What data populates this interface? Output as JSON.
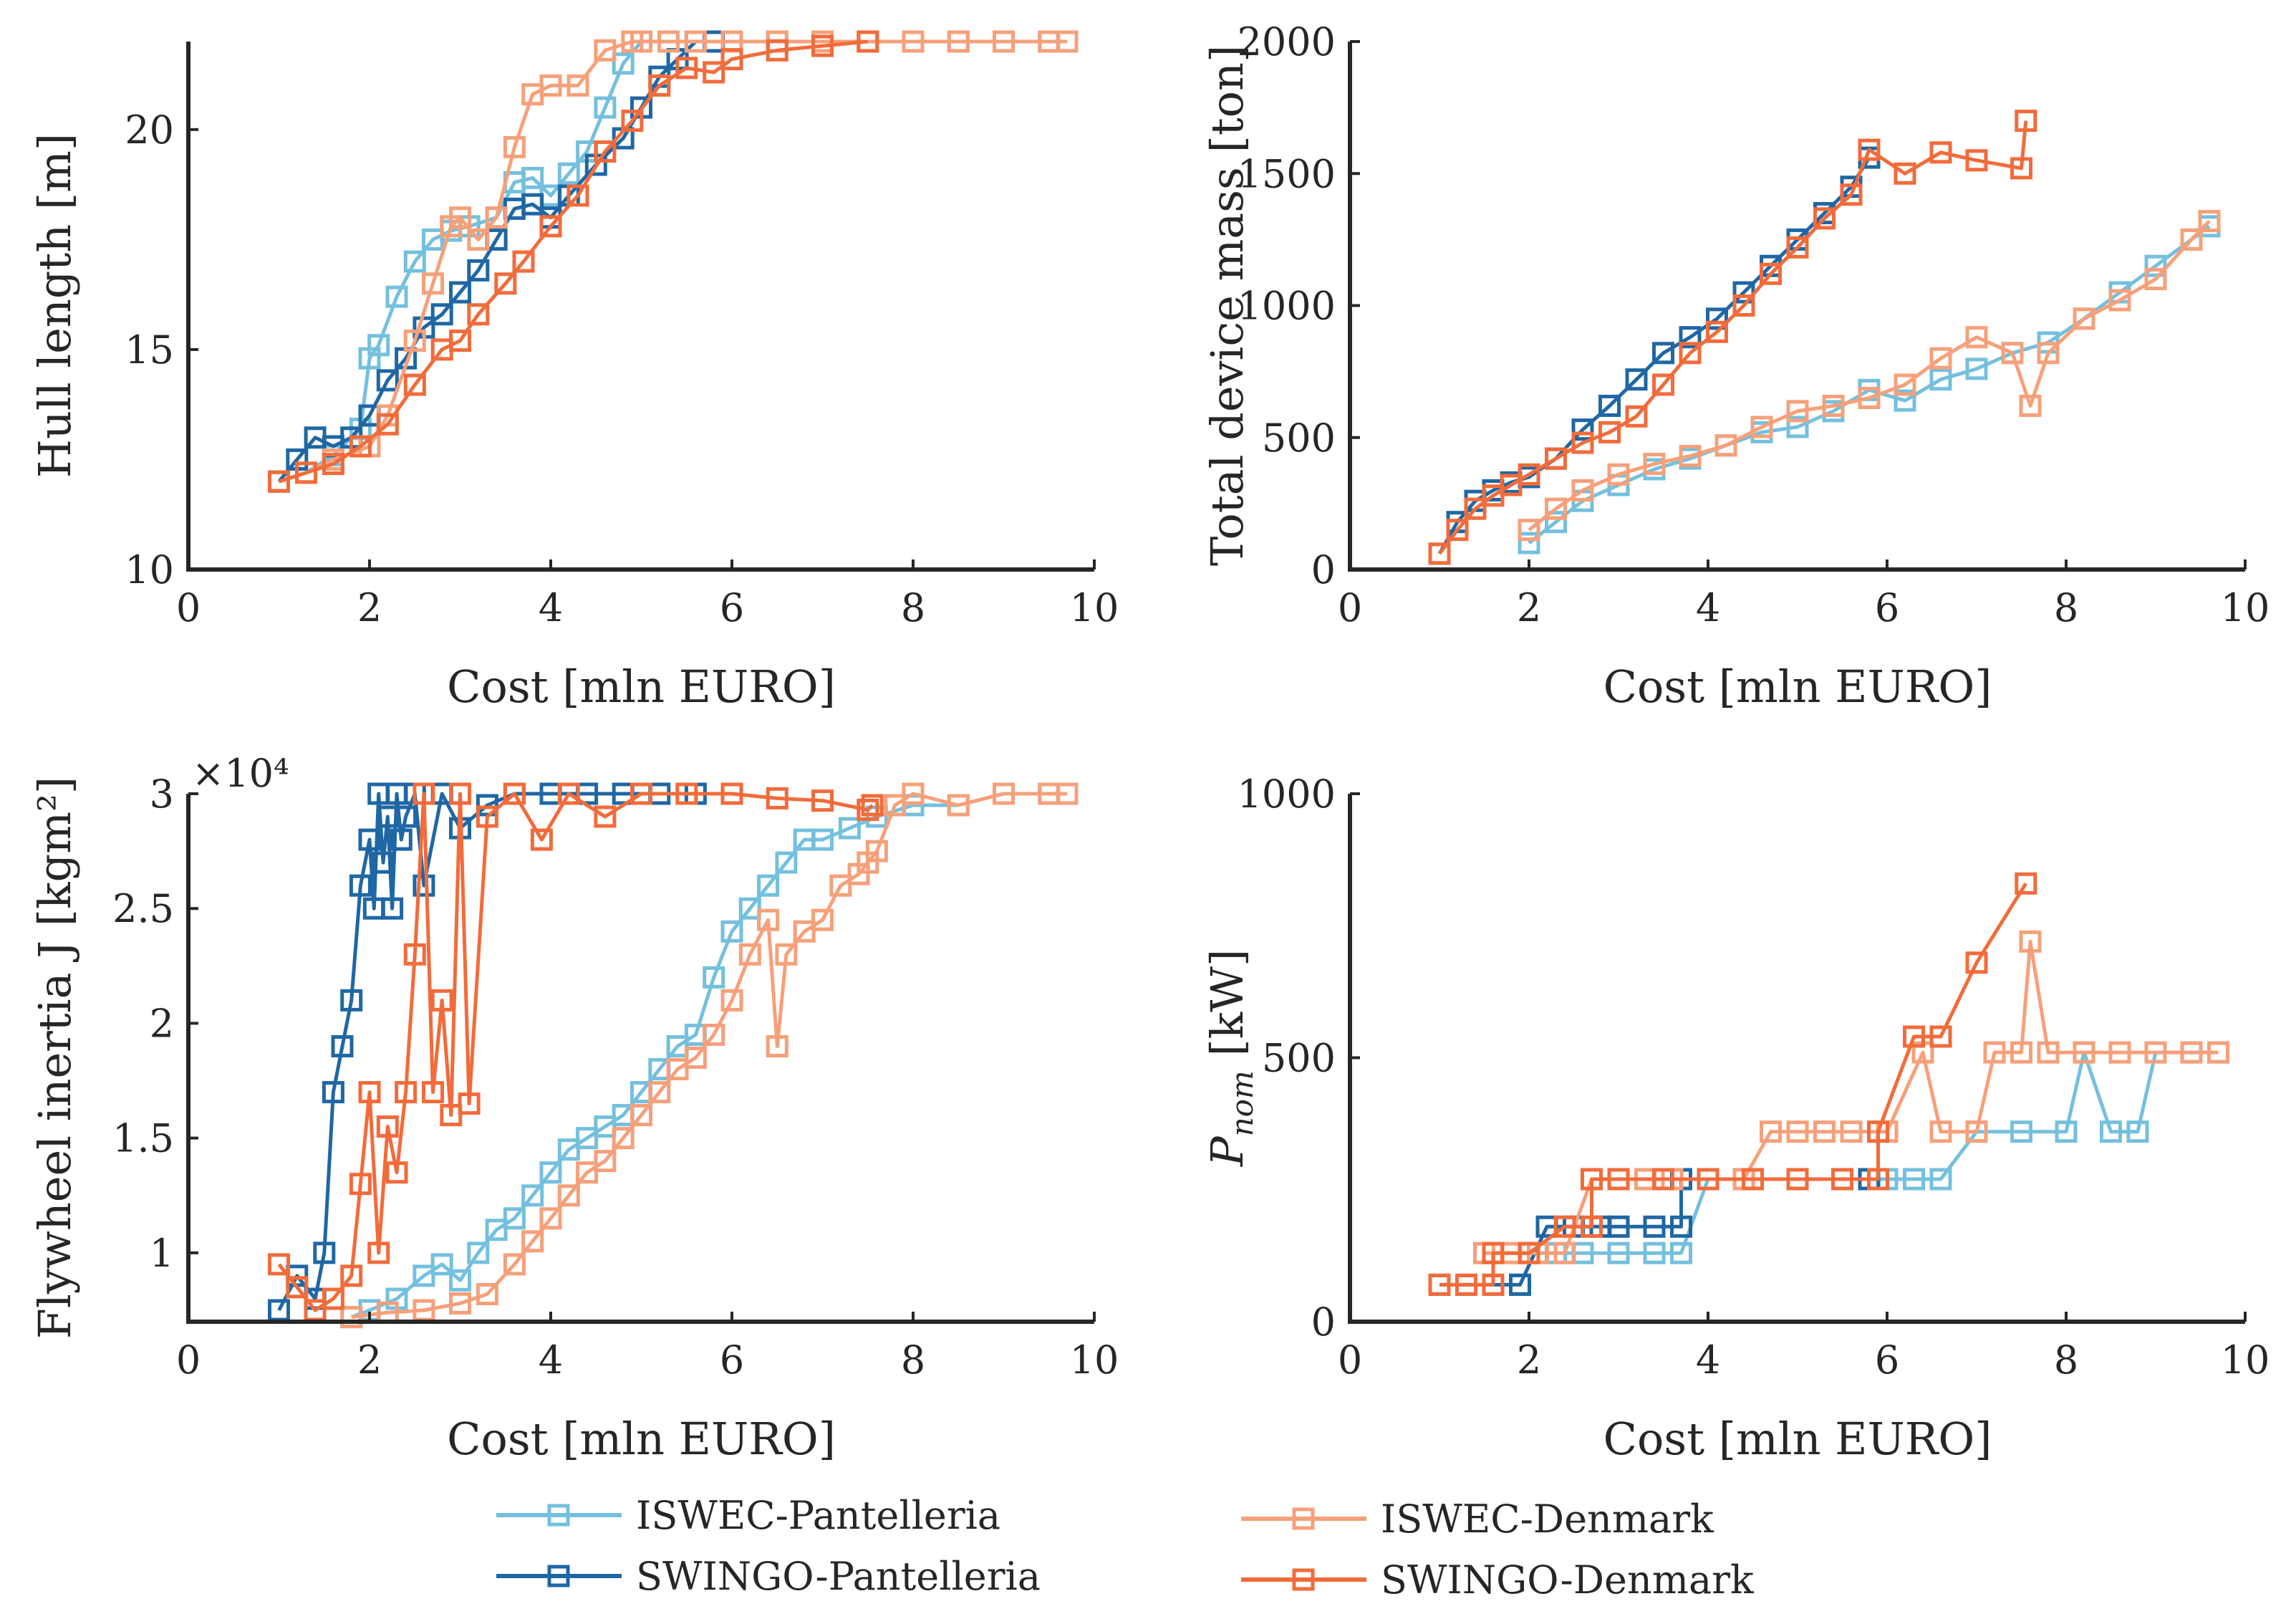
{
  "legend": {
    "items": [
      {
        "name": "ISWEC-Pantelleria",
        "color": "#74C0DE"
      },
      {
        "name": "SWINGO-Pantelleria",
        "color": "#1F67A4"
      },
      {
        "name": "ISWEC-Denmark",
        "color": "#F6A07A"
      },
      {
        "name": "SWINGO-Denmark",
        "color": "#F26B3A"
      }
    ]
  },
  "chart_data": [
    {
      "type": "line",
      "id": "hull",
      "title": "",
      "xlabel": "Cost [mln EURO]",
      "ylabel": "Hull length [m]",
      "xlim": [
        0,
        10
      ],
      "ylim": [
        10,
        22
      ],
      "xticks": [
        0,
        2,
        4,
        6,
        8,
        10
      ],
      "yticks": [
        10,
        15,
        20
      ],
      "exponent": "",
      "series": [
        {
          "name": "ISWEC-Pantelleria",
          "x": [
            1.0,
            1.3,
            1.6,
            1.9,
            2.0,
            2.1,
            2.3,
            2.5,
            2.7,
            2.9,
            3.1,
            3.4,
            3.6,
            3.8,
            4.0,
            4.2,
            4.4,
            4.6,
            4.8,
            5.0,
            5.3,
            5.6,
            6.0,
            6.5,
            7.0,
            7.5,
            8.0,
            8.5,
            9.0,
            9.5
          ],
          "y": [
            12.0,
            12.2,
            12.6,
            13.2,
            14.8,
            15.1,
            16.2,
            17.0,
            17.5,
            17.7,
            17.8,
            18.0,
            18.8,
            18.9,
            18.5,
            19.0,
            19.5,
            20.5,
            21.5,
            22.0,
            22.0,
            22.0,
            22.0,
            22.0,
            22.0,
            22.0,
            22.0,
            22.0,
            22.0,
            22.0
          ]
        },
        {
          "name": "SWINGO-Pantelleria",
          "x": [
            1.0,
            1.2,
            1.4,
            1.6,
            1.8,
            2.0,
            2.2,
            2.4,
            2.6,
            2.8,
            3.0,
            3.2,
            3.4,
            3.6,
            3.8,
            4.0,
            4.2,
            4.5,
            4.8,
            5.0,
            5.2,
            5.4,
            5.6,
            5.8
          ],
          "y": [
            12.0,
            12.5,
            13.0,
            12.8,
            13.0,
            13.5,
            14.3,
            14.8,
            15.5,
            15.8,
            16.3,
            16.8,
            17.5,
            18.2,
            18.3,
            18.0,
            18.5,
            19.2,
            19.8,
            20.5,
            21.2,
            21.6,
            22.0,
            22.0
          ]
        },
        {
          "name": "ISWEC-Denmark",
          "x": [
            1.0,
            1.3,
            1.6,
            2.0,
            2.2,
            2.5,
            2.7,
            2.9,
            3.0,
            3.2,
            3.4,
            3.6,
            3.8,
            4.0,
            4.3,
            4.6,
            4.9,
            5.0,
            5.3,
            5.6,
            6.0,
            6.5,
            7.0,
            7.5,
            8.0,
            8.5,
            9.0,
            9.5,
            9.7
          ],
          "y": [
            12.0,
            12.2,
            12.5,
            12.8,
            13.5,
            15.2,
            16.5,
            17.8,
            18.0,
            17.5,
            18.0,
            19.6,
            20.8,
            21.0,
            21.0,
            21.8,
            22.0,
            22.0,
            22.0,
            22.0,
            22.0,
            22.0,
            22.0,
            22.0,
            22.0,
            22.0,
            22.0,
            22.0,
            22.0
          ]
        },
        {
          "name": "SWINGO-Denmark",
          "x": [
            1.0,
            1.3,
            1.6,
            1.9,
            2.2,
            2.5,
            2.8,
            3.0,
            3.2,
            3.5,
            3.7,
            4.0,
            4.3,
            4.6,
            4.9,
            5.2,
            5.5,
            5.8,
            6.0,
            6.5,
            7.0,
            7.5
          ],
          "y": [
            12.0,
            12.2,
            12.4,
            12.8,
            13.3,
            14.2,
            15.0,
            15.2,
            15.8,
            16.5,
            17.0,
            17.8,
            18.5,
            19.5,
            20.2,
            21.0,
            21.4,
            21.3,
            21.6,
            21.8,
            21.9,
            22.0
          ]
        }
      ]
    },
    {
      "type": "line",
      "id": "mass",
      "title": "",
      "xlabel": "Cost [mln EURO]",
      "ylabel": "Total device mass [ton]",
      "xlim": [
        0,
        10
      ],
      "ylim": [
        0,
        2000
      ],
      "xticks": [
        0,
        2,
        4,
        6,
        8,
        10
      ],
      "yticks": [
        0,
        500,
        1000,
        1500,
        2000
      ],
      "exponent": "",
      "series": [
        {
          "name": "ISWEC-Pantelleria",
          "x": [
            2.0,
            2.3,
            2.6,
            3.0,
            3.4,
            3.8,
            4.2,
            4.6,
            5.0,
            5.4,
            5.8,
            6.2,
            6.6,
            7.0,
            7.4,
            7.8,
            8.2,
            8.6,
            9.0,
            9.4,
            9.6
          ],
          "y": [
            100,
            180,
            260,
            320,
            380,
            420,
            470,
            520,
            540,
            600,
            680,
            640,
            720,
            760,
            820,
            860,
            950,
            1050,
            1150,
            1250,
            1300
          ]
        },
        {
          "name": "SWINGO-Pantelleria",
          "x": [
            1.0,
            1.2,
            1.4,
            1.6,
            1.8,
            2.0,
            2.3,
            2.6,
            2.9,
            3.2,
            3.5,
            3.8,
            4.1,
            4.4,
            4.7,
            5.0,
            5.3,
            5.6,
            5.8
          ],
          "y": [
            60,
            180,
            260,
            300,
            330,
            350,
            420,
            530,
            620,
            720,
            820,
            880,
            950,
            1050,
            1150,
            1250,
            1350,
            1450,
            1560
          ]
        },
        {
          "name": "ISWEC-Denmark",
          "x": [
            2.0,
            2.3,
            2.6,
            3.0,
            3.4,
            3.8,
            4.2,
            4.6,
            5.0,
            5.4,
            5.8,
            6.2,
            6.6,
            7.0,
            7.4,
            7.6,
            7.8,
            8.2,
            8.6,
            9.0,
            9.4,
            9.6
          ],
          "y": [
            150,
            230,
            300,
            360,
            400,
            430,
            470,
            540,
            600,
            620,
            650,
            700,
            800,
            880,
            820,
            620,
            820,
            950,
            1020,
            1100,
            1250,
            1320
          ]
        },
        {
          "name": "SWINGO-Denmark",
          "x": [
            1.0,
            1.2,
            1.4,
            1.6,
            1.8,
            2.0,
            2.3,
            2.6,
            2.9,
            3.2,
            3.5,
            3.8,
            4.1,
            4.4,
            4.7,
            5.0,
            5.3,
            5.6,
            5.8,
            6.2,
            6.6,
            7.0,
            7.5,
            7.55
          ],
          "y": [
            60,
            150,
            230,
            280,
            320,
            360,
            420,
            480,
            520,
            580,
            700,
            820,
            900,
            1000,
            1120,
            1220,
            1330,
            1420,
            1590,
            1500,
            1580,
            1550,
            1520,
            1700
          ]
        }
      ]
    },
    {
      "type": "line",
      "id": "inertia",
      "title": "",
      "xlabel": "Cost [mln EURO]",
      "ylabel": "Flywheel inertia J [kgm²]",
      "xlim": [
        0,
        10
      ],
      "ylim": [
        0.7,
        3
      ],
      "xticks": [
        0,
        2,
        4,
        6,
        8,
        10
      ],
      "yticks": [
        1,
        1.5,
        2,
        2.5,
        3
      ],
      "ytick_labels": [
        "1",
        "1.5",
        "2",
        "2.5",
        "3"
      ],
      "exponent": "×10⁴",
      "series": [
        {
          "name": "ISWEC-Pantelleria",
          "x": [
            1.8,
            2.0,
            2.3,
            2.6,
            2.8,
            3.0,
            3.2,
            3.4,
            3.6,
            3.8,
            4.0,
            4.2,
            4.4,
            4.6,
            4.8,
            5.0,
            5.2,
            5.4,
            5.6,
            5.8,
            6.0,
            6.2,
            6.4,
            6.6,
            6.8,
            7.0,
            7.3,
            7.6,
            8.0,
            8.5,
            9.0,
            9.5
          ],
          "y": [
            0.72,
            0.75,
            0.8,
            0.9,
            0.95,
            0.88,
            1.0,
            1.1,
            1.15,
            1.25,
            1.35,
            1.45,
            1.5,
            1.55,
            1.6,
            1.7,
            1.8,
            1.9,
            1.95,
            2.2,
            2.4,
            2.5,
            2.6,
            2.7,
            2.8,
            2.8,
            2.85,
            2.9,
            2.95,
            2.95,
            3.0,
            3.0
          ]
        },
        {
          "name": "SWINGO-Pantelleria",
          "x": [
            1.0,
            1.2,
            1.4,
            1.5,
            1.6,
            1.7,
            1.8,
            1.9,
            2.0,
            2.05,
            2.1,
            2.15,
            2.2,
            2.25,
            2.3,
            2.35,
            2.4,
            2.5,
            2.6,
            2.8,
            3.0,
            3.3,
            3.6,
            4.0,
            4.4,
            4.8,
            5.2,
            5.6
          ],
          "y": [
            0.75,
            0.9,
            0.8,
            1.0,
            1.7,
            1.9,
            2.1,
            2.6,
            2.8,
            2.5,
            3.0,
            2.7,
            2.9,
            2.5,
            3.0,
            2.8,
            2.9,
            3.0,
            2.6,
            3.0,
            2.85,
            2.95,
            3.0,
            3.0,
            3.0,
            3.0,
            3.0,
            3.0
          ]
        },
        {
          "name": "ISWEC-Denmark",
          "x": [
            1.8,
            2.2,
            2.6,
            3.0,
            3.3,
            3.6,
            3.8,
            4.0,
            4.2,
            4.4,
            4.6,
            4.8,
            5.0,
            5.2,
            5.4,
            5.6,
            5.8,
            6.0,
            6.2,
            6.4,
            6.5,
            6.6,
            6.8,
            7.0,
            7.2,
            7.4,
            7.5,
            7.6,
            7.8,
            8.0,
            8.5,
            9.0,
            9.5,
            9.7
          ],
          "y": [
            0.72,
            0.74,
            0.75,
            0.78,
            0.82,
            0.95,
            1.05,
            1.15,
            1.25,
            1.35,
            1.4,
            1.5,
            1.6,
            1.7,
            1.8,
            1.85,
            1.95,
            2.1,
            2.3,
            2.45,
            1.9,
            2.3,
            2.4,
            2.45,
            2.6,
            2.65,
            2.7,
            2.75,
            2.95,
            3.0,
            2.95,
            3.0,
            3.0,
            3.0
          ]
        },
        {
          "name": "SWINGO-Denmark",
          "x": [
            1.0,
            1.2,
            1.4,
            1.6,
            1.8,
            1.9,
            2.0,
            2.1,
            2.2,
            2.3,
            2.4,
            2.5,
            2.6,
            2.7,
            2.8,
            2.9,
            3.0,
            3.1,
            3.3,
            3.6,
            3.9,
            4.2,
            4.6,
            5.0,
            5.5,
            6.0,
            6.5,
            7.0,
            7.5,
            7.55
          ],
          "y": [
            0.95,
            0.85,
            0.75,
            0.8,
            0.9,
            1.3,
            1.7,
            1.0,
            1.55,
            1.35,
            1.7,
            2.3,
            3.0,
            1.7,
            2.1,
            1.6,
            3.0,
            1.65,
            2.9,
            3.0,
            2.8,
            3.0,
            2.9,
            3.0,
            3.0,
            3.0,
            2.98,
            2.97,
            2.93,
            2.95
          ]
        }
      ]
    },
    {
      "type": "line",
      "id": "pnom",
      "title": "",
      "xlabel": "Cost [mln EURO]",
      "ylabel": "P_nom [kW]",
      "xlim": [
        0,
        10
      ],
      "ylim": [
        0,
        1000
      ],
      "xticks": [
        0,
        2,
        4,
        6,
        8,
        10
      ],
      "yticks": [
        0,
        500,
        1000
      ],
      "exponent": "",
      "series": [
        {
          "name": "ISWEC-Pantelleria",
          "x": [
            2.0,
            2.3,
            2.6,
            3.0,
            3.4,
            3.7,
            4.0,
            4.5,
            5.0,
            5.5,
            6.0,
            6.3,
            6.6,
            7.0,
            7.5,
            8.0,
            8.2,
            8.5,
            8.8,
            9.0,
            9.4,
            9.7
          ],
          "y": [
            130,
            130,
            130,
            130,
            130,
            130,
            270,
            270,
            270,
            270,
            270,
            270,
            270,
            360,
            360,
            360,
            510,
            360,
            360,
            510,
            510,
            510
          ]
        },
        {
          "name": "SWINGO-Pantelleria",
          "x": [
            1.0,
            1.3,
            1.6,
            1.9,
            1.9,
            2.2,
            2.5,
            2.8,
            3.0,
            3.4,
            3.7,
            3.7,
            4.0,
            4.5,
            5.0,
            5.5,
            5.8
          ],
          "y": [
            70,
            70,
            70,
            70,
            70,
            180,
            180,
            180,
            180,
            180,
            180,
            270,
            270,
            270,
            270,
            270,
            270
          ]
        },
        {
          "name": "ISWEC-Denmark",
          "x": [
            1.5,
            1.8,
            2.1,
            2.4,
            2.7,
            3.0,
            3.3,
            3.6,
            4.0,
            4.4,
            4.7,
            5.0,
            5.3,
            5.6,
            6.0,
            6.4,
            6.6,
            7.0,
            7.2,
            7.5,
            7.6,
            7.8,
            8.2,
            8.6,
            9.0,
            9.4,
            9.7
          ],
          "y": [
            130,
            130,
            130,
            130,
            270,
            270,
            270,
            270,
            270,
            270,
            360,
            360,
            360,
            360,
            360,
            510,
            360,
            360,
            510,
            510,
            720,
            510,
            510,
            510,
            510,
            510,
            510
          ]
        },
        {
          "name": "SWINGO-Denmark",
          "x": [
            1.0,
            1.3,
            1.6,
            1.6,
            2.0,
            2.4,
            2.7,
            2.7,
            3.0,
            3.5,
            4.0,
            4.5,
            5.0,
            5.5,
            5.9,
            5.9,
            6.3,
            6.6,
            7.0,
            7.55
          ],
          "y": [
            70,
            70,
            70,
            130,
            130,
            180,
            180,
            270,
            270,
            270,
            270,
            270,
            270,
            270,
            270,
            360,
            540,
            540,
            680,
            830
          ]
        }
      ]
    }
  ]
}
